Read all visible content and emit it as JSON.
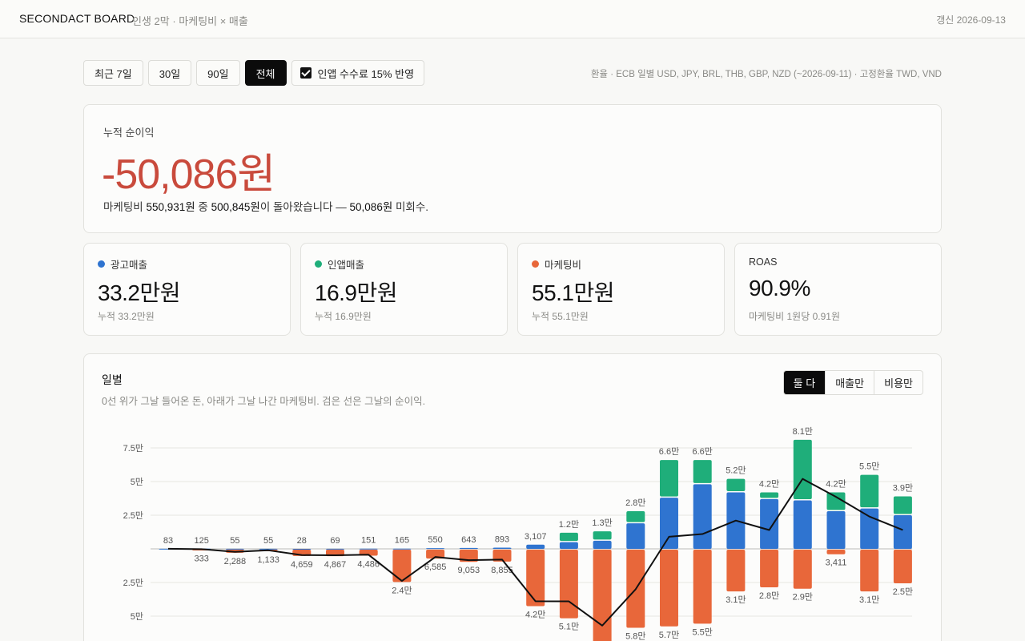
{
  "header": {
    "brand": "SECONDACT BOARD",
    "crumb": "인생 2막 · 마케팅비 × 매출",
    "updated": "갱신 2026-09-13"
  },
  "filters": {
    "ranges": [
      {
        "label": "최근 7일",
        "active": false
      },
      {
        "label": "30일",
        "active": false
      },
      {
        "label": "90일",
        "active": false
      },
      {
        "label": "전체",
        "active": true
      }
    ],
    "fee_toggle_label": "인앱 수수료 15% 반영",
    "fee_toggle_checked": true
  },
  "fx_note": "환율 · ECB 일별 USD, JPY, BRL, THB, GBP, NZD (~2026-09-11) · 고정환율 TWD, VND",
  "hero": {
    "label": "누적 순이익",
    "value": "-50,086원",
    "sub_1": "마케팅비 ",
    "sub_2": "550,931원",
    "sub_3": " 중 ",
    "sub_4": "500,845원",
    "sub_5": "이 돌아왔습니다 — ",
    "sub_6": "50,086원",
    "sub_7": " 미회수."
  },
  "kpis": [
    {
      "label": "광고매출",
      "value": "33.2만원",
      "note": "누적 33.2만원",
      "color": "#2f74d0"
    },
    {
      "label": "인앱매출",
      "value": "16.9만원",
      "note": "누적 16.9만원",
      "color": "#1fae7a"
    },
    {
      "label": "마케팅비",
      "value": "55.1만원",
      "note": "누적 55.1만원",
      "color": "#e8673a"
    },
    {
      "label": "ROAS",
      "value": "90.9%",
      "note": "마케팅비 1원당 0.91원",
      "color": ""
    }
  ],
  "daily": {
    "title": "일별",
    "desc": "0선 위가 그날 들어온 돈, 아래가 그날 나간 마케팅비. 검은 선은 그날의 순이익.",
    "modes": [
      {
        "label": "둘 다",
        "active": true
      },
      {
        "label": "매출만",
        "active": false
      },
      {
        "label": "비용만",
        "active": false
      }
    ]
  },
  "chart_data": {
    "type": "bar",
    "colors": {
      "ad": "#2f74d0",
      "inapp": "#1fae7a",
      "marketing": "#e8673a",
      "net": "#111111"
    },
    "y_tick_labels_positive": [
      "2.5만",
      "5만",
      "7.5만"
    ],
    "y_tick_labels_negative": [
      "2.5만",
      "5만"
    ],
    "ylim": [
      -70000,
      85000
    ],
    "grid": true,
    "series": [
      {
        "name": "광고매출",
        "values": [
          83,
          125,
          55,
          55,
          28,
          69,
          151,
          165,
          550,
          643,
          893,
          3107,
          5000,
          6000,
          19000,
          38000,
          48000,
          42000,
          37000,
          36000,
          28000,
          30000,
          25000
        ]
      },
      {
        "name": "인앱매출",
        "values": [
          0,
          0,
          0,
          0,
          0,
          0,
          0,
          0,
          0,
          0,
          0,
          0,
          7000,
          7000,
          9000,
          28000,
          18000,
          10000,
          5000,
          45000,
          14000,
          25000,
          14000
        ]
      },
      {
        "name": "마케팅비",
        "values": [
          0,
          333,
          2288,
          1133,
          4659,
          4867,
          4486,
          24000,
          6585,
          9053,
          8855,
          42000,
          51000,
          70000,
          58000,
          57000,
          55000,
          31000,
          28000,
          29000,
          3411,
          31000,
          25000
        ]
      }
    ],
    "net_values": [
      83,
      -208,
      -2233,
      -1078,
      -4631,
      -4798,
      -4335,
      -23835,
      -6035,
      -8410,
      -7962,
      -38893,
      -39000,
      -57000,
      -30000,
      9000,
      11000,
      21000,
      14000,
      52000,
      38600,
      24000,
      14000
    ],
    "top_labels": [
      "83",
      "125",
      "55",
      "55",
      "28",
      "69",
      "151",
      "165",
      "550",
      "643",
      "893",
      "3,107",
      "1.2만",
      "1.3만",
      "2.8만",
      "6.6만",
      "6.6만",
      "5.2만",
      "4.2만",
      "8.1만",
      "4.2만",
      "5.5만",
      "3.9만"
    ],
    "bottom_labels": [
      "",
      "333",
      "2,288",
      "1,133",
      "4,659",
      "4,867",
      "4,486",
      "2.4만",
      "6,585",
      "9,053",
      "8,855",
      "4.2만",
      "5.1만",
      "",
      "5.8만",
      "5.7만",
      "5.5만",
      "3.1만",
      "2.8만",
      "2.9만",
      "3,411",
      "3.1만",
      "2.5만"
    ]
  }
}
